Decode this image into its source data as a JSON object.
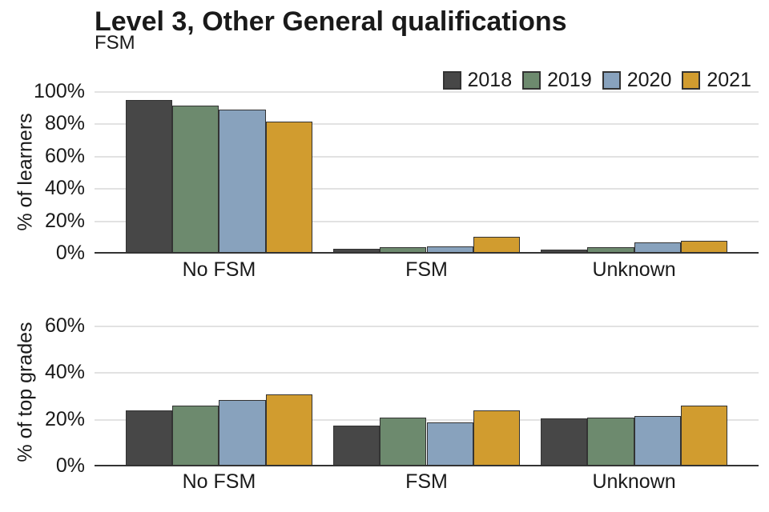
{
  "title": "Level 3, Other General qualifications",
  "subtitle": "FSM",
  "legend": {
    "entries": [
      "2018",
      "2019",
      "2020",
      "2021"
    ]
  },
  "palette": {
    "2018": "#474747",
    "2019": "#6d8a6e",
    "2020": "#88a2bd",
    "2021": "#d19c2f"
  },
  "chart_data": [
    {
      "type": "bar",
      "panel": "learners",
      "ylabel": "% of learners",
      "categories": [
        "No FSM",
        "FSM",
        "Unknown"
      ],
      "series": [
        {
          "name": "2018",
          "color": "#474747",
          "values": [
            95,
            3,
            2.5
          ]
        },
        {
          "name": "2019",
          "color": "#6d8a6e",
          "values": [
            91.5,
            4,
            4
          ]
        },
        {
          "name": "2020",
          "color": "#88a2bd",
          "values": [
            89,
            4.5,
            7
          ]
        },
        {
          "name": "2021",
          "color": "#d19c2f",
          "values": [
            81.5,
            10.5,
            8
          ]
        }
      ],
      "ylim": [
        0,
        100
      ],
      "yticks": [
        0,
        20,
        40,
        60,
        80,
        100
      ],
      "ytick_labels": [
        "0%",
        "20%",
        "40%",
        "60%",
        "80%",
        "100%"
      ],
      "grid": true,
      "legend_position": "top-right"
    },
    {
      "type": "bar",
      "panel": "top-grades",
      "ylabel": "% of top grades",
      "categories": [
        "No FSM",
        "FSM",
        "Unknown"
      ],
      "series": [
        {
          "name": "2018",
          "color": "#474747",
          "values": [
            24,
            17.5,
            20.5
          ]
        },
        {
          "name": "2019",
          "color": "#6d8a6e",
          "values": [
            26,
            21,
            21
          ]
        },
        {
          "name": "2020",
          "color": "#88a2bd",
          "values": [
            28.5,
            19,
            21.5
          ]
        },
        {
          "name": "2021",
          "color": "#d19c2f",
          "values": [
            31,
            24,
            26
          ]
        }
      ],
      "ylim": [
        0,
        64
      ],
      "yticks": [
        0,
        20,
        40,
        60
      ],
      "ytick_labels": [
        "0%",
        "20%",
        "40%",
        "60%"
      ],
      "grid": true
    }
  ]
}
